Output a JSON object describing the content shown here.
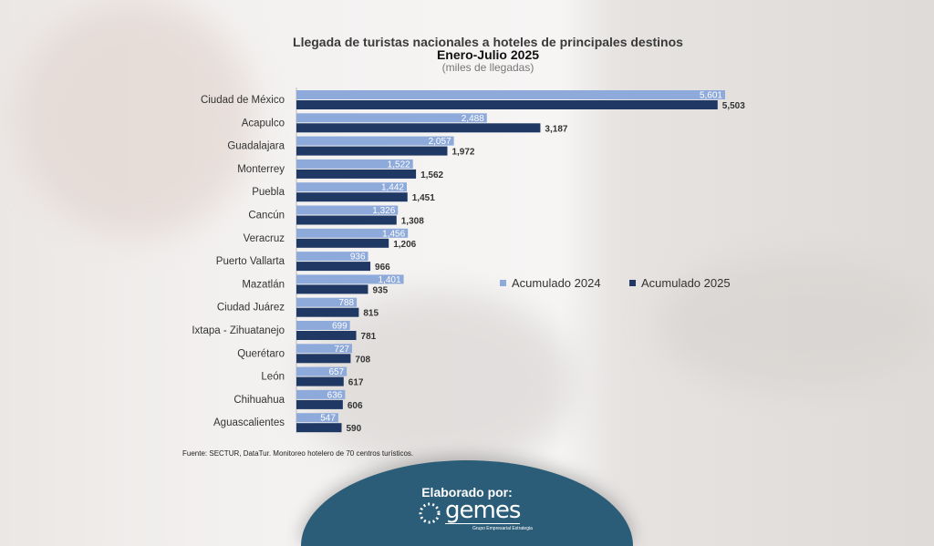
{
  "chart_data": {
    "type": "bar",
    "orientation": "horizontal",
    "title": "Llegada de turistas nacionales a hoteles de principales destinos",
    "subtitle": "Enero-Julio 2025",
    "unit_note": "(miles de llegadas)",
    "categories": [
      "Ciudad de México",
      "Acapulco",
      "Guadalajara",
      "Monterrey",
      "Puebla",
      "Cancún",
      "Veracruz",
      "Puerto Vallarta",
      "Mazatlán",
      "Ciudad Juárez",
      "Ixtapa - Zihuatanejo",
      "Querétaro",
      "León",
      "Chihuahua",
      "Aguascalientes"
    ],
    "series": [
      {
        "name": "Acumulado 2024",
        "color": "#8eaadb",
        "values": [
          5601,
          2488,
          2057,
          1522,
          1442,
          1326,
          1456,
          936,
          1401,
          788,
          699,
          727,
          657,
          636,
          547
        ]
      },
      {
        "name": "Acumulado 2025",
        "color": "#1f3864",
        "values": [
          5503,
          3187,
          1972,
          1562,
          1451,
          1308,
          1206,
          966,
          935,
          815,
          781,
          708,
          617,
          606,
          590
        ]
      }
    ],
    "legend_position": "right",
    "grid": false
  },
  "footnote": "Fuente: SECTUR, DataTur. Monitoreo hotelero de 70 centros turísticos.",
  "credit": {
    "label": "Elaborado por:",
    "logo_text": "gemes",
    "logo_subtitle": "Grupo Empresarial Estrategia"
  }
}
